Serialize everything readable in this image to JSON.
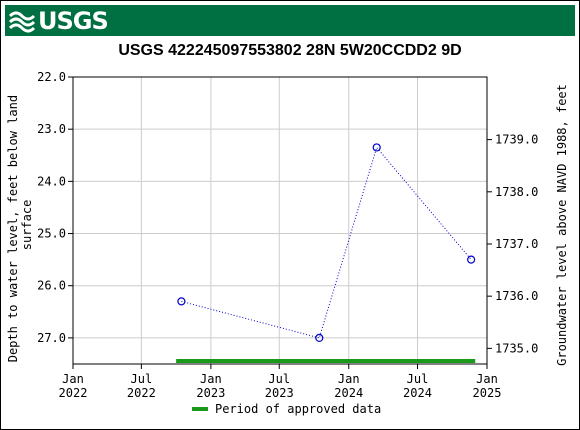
{
  "header": {
    "logo_text": "USGS",
    "logo_icon": "usgs-wave-icon"
  },
  "chart_data": {
    "type": "scatter",
    "title": "USGS 422245097553802 28N  5W20CCDD2 9D",
    "ylabel": "Depth to water level, feet below land surface",
    "ylabel_lines": [
      "Depth to water level, feet below land",
      "surface"
    ],
    "y2label": "Groundwater level above NAVD 1988, feet",
    "y_inverted": true,
    "ylim": [
      22.0,
      27.5
    ],
    "yticks": [
      "22.0",
      "23.0",
      "24.0",
      "25.0",
      "26.0",
      "27.0"
    ],
    "y2ticks": [
      "1739.0",
      "1738.0",
      "1737.0",
      "1736.0",
      "1735.0"
    ],
    "y2_ref": {
      "depth": 23.0,
      "elevation": 1739.2
    },
    "xlim": [
      "2022-01-01",
      "2025-01-01"
    ],
    "xticks": [
      {
        "date": "2022-01-01",
        "line1": "Jan",
        "line2": "2022"
      },
      {
        "date": "2022-07-01",
        "line1": "Jul",
        "line2": "2022"
      },
      {
        "date": "2023-01-01",
        "line1": "Jan",
        "line2": "2023"
      },
      {
        "date": "2023-07-01",
        "line1": "Jul",
        "line2": "2023"
      },
      {
        "date": "2024-01-01",
        "line1": "Jan",
        "line2": "2024"
      },
      {
        "date": "2024-07-01",
        "line1": "Jul",
        "line2": "2024"
      },
      {
        "date": "2025-01-01",
        "line1": "Jan",
        "line2": "2025"
      }
    ],
    "grid": true,
    "series": [
      {
        "points": [
          {
            "x": "2022-10-15",
            "y": 26.3
          },
          {
            "x": "2023-10-15",
            "y": 27.0
          },
          {
            "x": "2024-03-15",
            "y": 23.35
          },
          {
            "x": "2024-11-20",
            "y": 25.5
          }
        ],
        "color": "#0000cc",
        "marker": "circle",
        "line_style": "dotted"
      }
    ],
    "approved_period": {
      "start": "2022-10-01",
      "end": "2024-12-01",
      "color": "#1a9a1a"
    },
    "legend": {
      "label": "Period of approved data",
      "position": "bottom"
    }
  }
}
